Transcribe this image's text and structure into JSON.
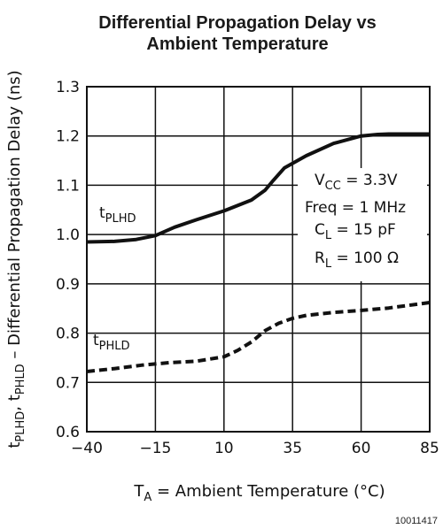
{
  "chart_data": {
    "type": "line",
    "title_line1": "Differential Propagation Delay vs",
    "title_line2": "Ambient Temperature",
    "xlabel_prefix": "T",
    "xlabel_sub": "A",
    "xlabel_rest": " = Ambient Temperature (°C)",
    "ylabel": {
      "p1": "t",
      "s1": "PLHD",
      "p2": ", t",
      "s2": "PHLD",
      "p3": " – Differential Propagation Delay (ns)"
    },
    "xlim": [
      -40,
      85
    ],
    "ylim": [
      0.6,
      1.3
    ],
    "xticks": [
      "-40",
      "-15",
      "10",
      "35",
      "60",
      "85"
    ],
    "yticks": [
      "0.6",
      "0.7",
      "0.8",
      "0.9",
      "1.0",
      "1.1",
      "1.2",
      "1.3"
    ],
    "grid": true,
    "series": [
      {
        "name": "tPLHD",
        "label_main": "t",
        "label_sub": "PLHD",
        "style": "solid",
        "x": [
          -40,
          -30,
          -22,
          -15,
          -8,
          0,
          10,
          20,
          25,
          28,
          32,
          40,
          50,
          60,
          66,
          70,
          85
        ],
        "y": [
          0.985,
          0.986,
          0.99,
          0.998,
          1.015,
          1.03,
          1.048,
          1.07,
          1.09,
          1.11,
          1.135,
          1.16,
          1.185,
          1.2,
          1.203,
          1.204,
          1.204
        ]
      },
      {
        "name": "tPHLD",
        "label_main": "t",
        "label_sub": "PHLD",
        "style": "dashed",
        "x": [
          -40,
          -30,
          -20,
          -10,
          0,
          10,
          15,
          20,
          25,
          30,
          35,
          40,
          50,
          60,
          70,
          85
        ],
        "y": [
          0.722,
          0.728,
          0.735,
          0.74,
          0.743,
          0.752,
          0.765,
          0.782,
          0.805,
          0.82,
          0.83,
          0.836,
          0.842,
          0.846,
          0.851,
          0.862
        ]
      }
    ],
    "conditions": {
      "vcc": {
        "p": "V",
        "s": "CC",
        "r": " = 3.3V"
      },
      "freq": "Freq = 1 MHz",
      "cl": {
        "p": "C",
        "s": "L",
        "r": " = 15 pF"
      },
      "rl": {
        "p": "R",
        "s": "L",
        "r": " = 100 Ω"
      }
    },
    "figure_number": "10011417"
  }
}
